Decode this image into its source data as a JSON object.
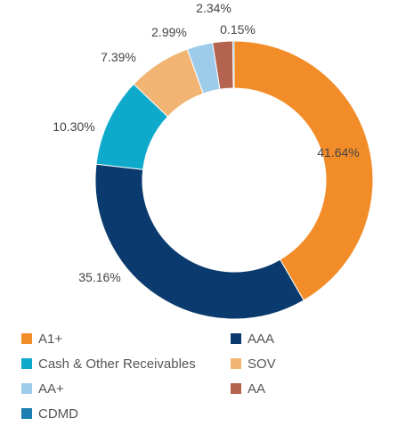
{
  "chart_data": {
    "type": "pie",
    "donut": true,
    "legend_position": "bottom",
    "slices": [
      {
        "label": "A1+",
        "value": 41.64,
        "value_label": "41.64%",
        "color": "#F28C28"
      },
      {
        "label": "AAA",
        "value": 35.16,
        "value_label": "35.16%",
        "color": "#0B3B6E"
      },
      {
        "label": "Cash & Other Receivables",
        "value": 10.3,
        "value_label": "10.30%",
        "color": "#0FAACB"
      },
      {
        "label": "SOV",
        "value": 7.39,
        "value_label": "7.39%",
        "color": "#F2B472"
      },
      {
        "label": "AA+",
        "value": 2.99,
        "value_label": "2.99%",
        "color": "#9DCCEB"
      },
      {
        "label": "AA",
        "value": 2.34,
        "value_label": "2.34%",
        "color": "#B4634E"
      },
      {
        "label": "CDMD",
        "value": 0.15,
        "value_label": "0.15%",
        "color": "#1A7FB0"
      }
    ]
  }
}
